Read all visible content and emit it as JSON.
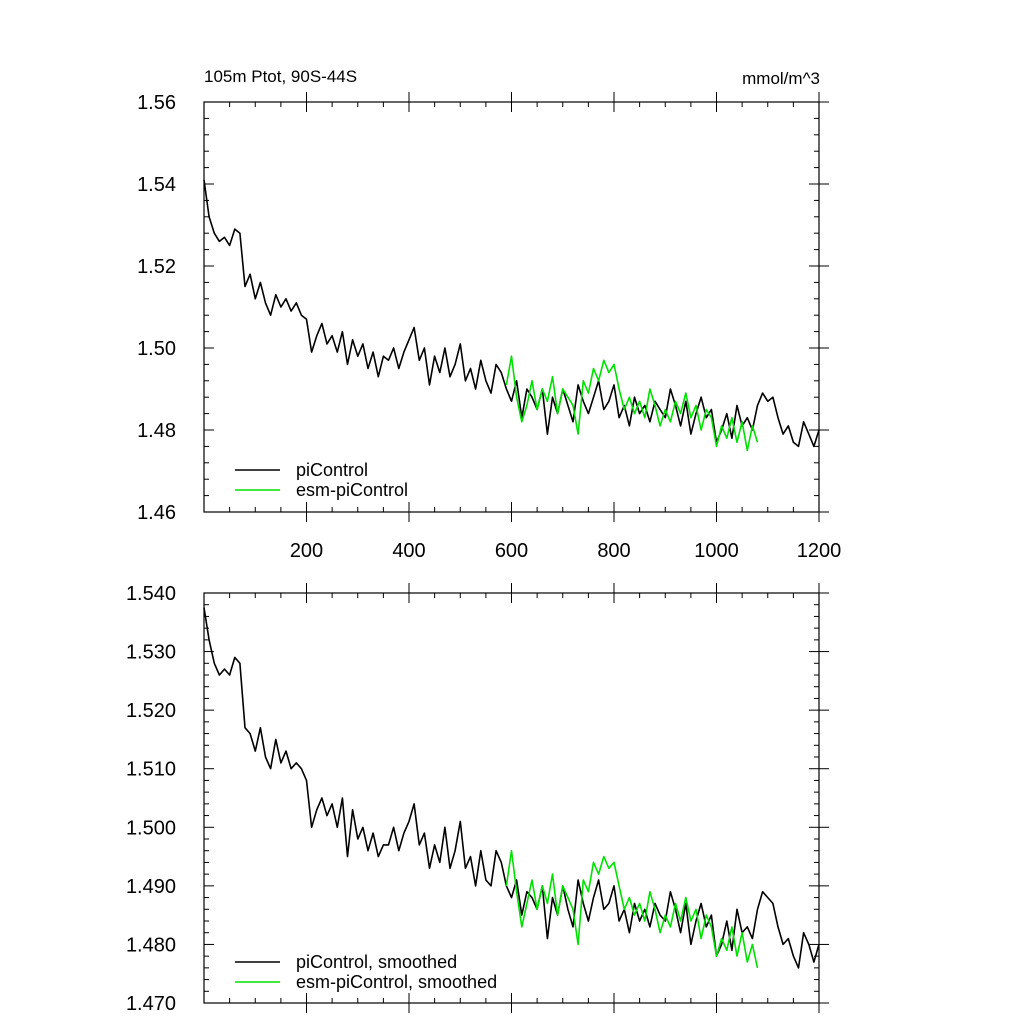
{
  "chart_data": [
    {
      "type": "line",
      "title_left": "105m Ptot, 90S-44S",
      "title_right": "mmol/m^3",
      "xlim": [
        0,
        1200
      ],
      "ylim": [
        1.46,
        1.56
      ],
      "x_tick_values": [
        200,
        400,
        600,
        800,
        1000,
        1200
      ],
      "x_tick_labels": [
        "200",
        "400",
        "600",
        "800",
        "1000",
        "1200"
      ],
      "y_tick_values": [
        1.46,
        1.48,
        1.5,
        1.52,
        1.54,
        1.56
      ],
      "y_tick_labels": [
        "1.46",
        "1.48",
        "1.50",
        "1.52",
        "1.54",
        "1.56"
      ],
      "grid": false,
      "legend_position": "bottom-left",
      "series": [
        {
          "name": "piControl",
          "color": "#000000",
          "x": [
            0,
            10,
            20,
            30,
            40,
            50,
            60,
            70,
            80,
            90,
            100,
            110,
            120,
            130,
            140,
            150,
            160,
            170,
            180,
            190,
            200,
            210,
            220,
            230,
            240,
            250,
            260,
            270,
            280,
            290,
            300,
            310,
            320,
            330,
            340,
            350,
            360,
            370,
            380,
            390,
            400,
            410,
            420,
            430,
            440,
            450,
            460,
            470,
            480,
            490,
            500,
            510,
            520,
            530,
            540,
            550,
            560,
            570,
            580,
            590,
            600,
            610,
            620,
            630,
            640,
            650,
            660,
            670,
            680,
            690,
            700,
            710,
            720,
            730,
            740,
            750,
            760,
            770,
            780,
            790,
            800,
            810,
            820,
            830,
            840,
            850,
            860,
            870,
            880,
            890,
            900,
            910,
            920,
            930,
            940,
            950,
            960,
            970,
            980,
            990,
            1000,
            1010,
            1020,
            1030,
            1040,
            1050,
            1060,
            1070,
            1080,
            1090,
            1100,
            1110,
            1120,
            1130,
            1140,
            1150,
            1160,
            1170,
            1180,
            1190,
            1200
          ],
          "y": [
            1.541,
            1.532,
            1.528,
            1.526,
            1.527,
            1.525,
            1.529,
            1.528,
            1.515,
            1.518,
            1.512,
            1.516,
            1.511,
            1.508,
            1.513,
            1.51,
            1.512,
            1.509,
            1.511,
            1.508,
            1.507,
            1.499,
            1.503,
            1.506,
            1.501,
            1.503,
            1.499,
            1.504,
            1.496,
            1.502,
            1.498,
            1.501,
            1.495,
            1.499,
            1.493,
            1.498,
            1.497,
            1.5,
            1.495,
            1.499,
            1.502,
            1.505,
            1.497,
            1.5,
            1.491,
            1.498,
            1.494,
            1.5,
            1.493,
            1.496,
            1.501,
            1.492,
            1.495,
            1.49,
            1.497,
            1.492,
            1.489,
            1.496,
            1.494,
            1.49,
            1.487,
            1.492,
            1.483,
            1.49,
            1.488,
            1.485,
            1.49,
            1.479,
            1.488,
            1.484,
            1.49,
            1.486,
            1.482,
            1.491,
            1.487,
            1.484,
            1.488,
            1.492,
            1.485,
            1.487,
            1.491,
            1.483,
            1.486,
            1.481,
            1.488,
            1.484,
            1.486,
            1.482,
            1.487,
            1.485,
            1.483,
            1.49,
            1.486,
            1.481,
            1.487,
            1.479,
            1.484,
            1.488,
            1.483,
            1.485,
            1.477,
            1.48,
            1.484,
            1.478,
            1.486,
            1.481,
            1.483,
            1.48,
            1.486,
            1.489,
            1.487,
            1.488,
            1.483,
            1.479,
            1.481,
            1.477,
            1.476,
            1.482,
            1.479,
            1.476,
            1.48
          ]
        },
        {
          "name": "esm-piControl",
          "color": "#00e000",
          "x": [
            590,
            600,
            610,
            620,
            630,
            640,
            650,
            660,
            670,
            680,
            690,
            700,
            710,
            720,
            730,
            740,
            750,
            760,
            770,
            780,
            790,
            800,
            810,
            820,
            830,
            840,
            850,
            860,
            870,
            880,
            890,
            900,
            910,
            920,
            930,
            940,
            950,
            960,
            970,
            980,
            990,
            1000,
            1010,
            1020,
            1030,
            1040,
            1050,
            1060,
            1070,
            1080
          ],
          "y": [
            1.491,
            1.498,
            1.488,
            1.482,
            1.486,
            1.492,
            1.485,
            1.49,
            1.487,
            1.493,
            1.484,
            1.49,
            1.488,
            1.486,
            1.479,
            1.492,
            1.489,
            1.495,
            1.492,
            1.497,
            1.494,
            1.496,
            1.49,
            1.485,
            1.488,
            1.484,
            1.487,
            1.483,
            1.49,
            1.486,
            1.481,
            1.485,
            1.482,
            1.487,
            1.484,
            1.489,
            1.483,
            1.486,
            1.48,
            1.485,
            1.483,
            1.476,
            1.481,
            1.478,
            1.483,
            1.477,
            1.482,
            1.475,
            1.481,
            1.477
          ]
        }
      ]
    },
    {
      "type": "line",
      "xlim": [
        0,
        1200
      ],
      "ylim": [
        1.47,
        1.54
      ],
      "x_tick_values": [
        200,
        400,
        600,
        800,
        1000,
        1200
      ],
      "y_tick_values": [
        1.47,
        1.48,
        1.49,
        1.5,
        1.51,
        1.52,
        1.53,
        1.54
      ],
      "y_tick_labels": [
        "1.470",
        "1.480",
        "1.490",
        "1.500",
        "1.510",
        "1.520",
        "1.530",
        "1.540"
      ],
      "grid": false,
      "legend_position": "bottom-left",
      "series": [
        {
          "name": "piControl, smoothed",
          "color": "#000000",
          "x": [
            0,
            10,
            20,
            30,
            40,
            50,
            60,
            70,
            80,
            90,
            100,
            110,
            120,
            130,
            140,
            150,
            160,
            170,
            180,
            190,
            200,
            210,
            220,
            230,
            240,
            250,
            260,
            270,
            280,
            290,
            300,
            310,
            320,
            330,
            340,
            350,
            360,
            370,
            380,
            390,
            400,
            410,
            420,
            430,
            440,
            450,
            460,
            470,
            480,
            490,
            500,
            510,
            520,
            530,
            540,
            550,
            560,
            570,
            580,
            590,
            600,
            610,
            620,
            630,
            640,
            650,
            660,
            670,
            680,
            690,
            700,
            710,
            720,
            730,
            740,
            750,
            760,
            770,
            780,
            790,
            800,
            810,
            820,
            830,
            840,
            850,
            860,
            870,
            880,
            890,
            900,
            910,
            920,
            930,
            940,
            950,
            960,
            970,
            980,
            990,
            1000,
            1010,
            1020,
            1030,
            1040,
            1050,
            1060,
            1070,
            1080,
            1090,
            1100,
            1110,
            1120,
            1130,
            1140,
            1150,
            1160,
            1170,
            1180,
            1190,
            1200
          ],
          "y": [
            1.5375,
            1.532,
            1.528,
            1.526,
            1.527,
            1.526,
            1.529,
            1.528,
            1.517,
            1.516,
            1.513,
            1.517,
            1.512,
            1.51,
            1.515,
            1.511,
            1.513,
            1.51,
            1.511,
            1.51,
            1.508,
            1.5,
            1.503,
            1.505,
            1.502,
            1.504,
            1.5,
            1.505,
            1.495,
            1.503,
            1.498,
            1.5,
            1.496,
            1.499,
            1.495,
            1.497,
            1.497,
            1.5,
            1.496,
            1.499,
            1.501,
            1.504,
            1.497,
            1.499,
            1.493,
            1.497,
            1.494,
            1.5,
            1.493,
            1.496,
            1.501,
            1.493,
            1.495,
            1.49,
            1.496,
            1.491,
            1.49,
            1.496,
            1.494,
            1.49,
            1.488,
            1.491,
            1.485,
            1.489,
            1.488,
            1.486,
            1.49,
            1.481,
            1.488,
            1.485,
            1.49,
            1.486,
            1.483,
            1.491,
            1.487,
            1.484,
            1.488,
            1.491,
            1.486,
            1.487,
            1.49,
            1.484,
            1.486,
            1.482,
            1.487,
            1.484,
            1.486,
            1.483,
            1.487,
            1.485,
            1.484,
            1.489,
            1.486,
            1.482,
            1.487,
            1.48,
            1.484,
            1.487,
            1.483,
            1.485,
            1.478,
            1.48,
            1.484,
            1.479,
            1.486,
            1.482,
            1.483,
            1.481,
            1.486,
            1.489,
            1.488,
            1.487,
            1.483,
            1.48,
            1.481,
            1.478,
            1.476,
            1.482,
            1.48,
            1.477,
            1.48
          ]
        },
        {
          "name": "esm-piControl, smoothed",
          "color": "#00e000",
          "x": [
            590,
            600,
            610,
            620,
            630,
            640,
            650,
            660,
            670,
            680,
            690,
            700,
            710,
            720,
            730,
            740,
            750,
            760,
            770,
            780,
            790,
            800,
            810,
            820,
            830,
            840,
            850,
            860,
            870,
            880,
            890,
            900,
            910,
            920,
            930,
            940,
            950,
            960,
            970,
            980,
            990,
            1000,
            1010,
            1020,
            1030,
            1040,
            1050,
            1060,
            1070,
            1080
          ],
          "y": [
            1.49,
            1.496,
            1.489,
            1.483,
            1.487,
            1.491,
            1.486,
            1.49,
            1.487,
            1.492,
            1.485,
            1.49,
            1.488,
            1.486,
            1.48,
            1.491,
            1.489,
            1.494,
            1.492,
            1.495,
            1.493,
            1.494,
            1.49,
            1.486,
            1.488,
            1.485,
            1.487,
            1.484,
            1.489,
            1.486,
            1.482,
            1.485,
            1.483,
            1.487,
            1.484,
            1.488,
            1.484,
            1.486,
            1.481,
            1.485,
            1.483,
            1.478,
            1.481,
            1.479,
            1.483,
            1.478,
            1.482,
            1.477,
            1.48,
            1.476
          ]
        }
      ]
    }
  ]
}
